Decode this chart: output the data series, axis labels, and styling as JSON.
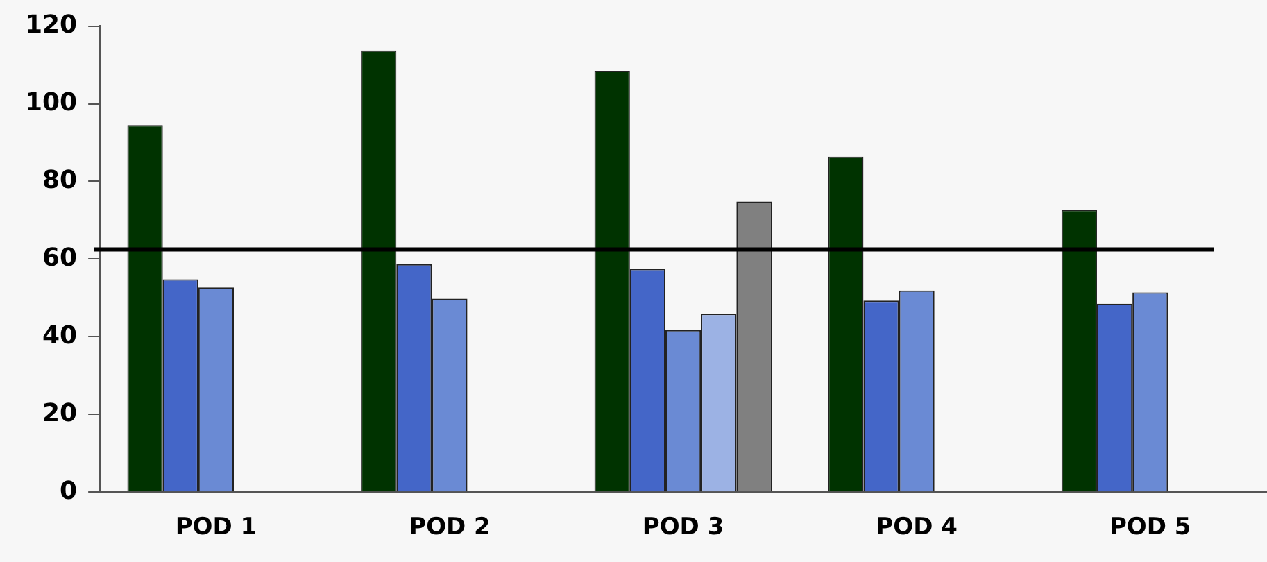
{
  "chart_data": {
    "type": "bar",
    "categories": [
      "POD 1",
      "POD 2",
      "POD 3",
      "POD 4",
      "POD 5"
    ],
    "series": [
      {
        "color": "#003300",
        "values": [
          94.5,
          113.7,
          108.5,
          86.4,
          72.7
        ]
      },
      {
        "color": "#4466c8",
        "values": [
          54.8,
          58.7,
          57.5,
          49.3,
          48.5
        ]
      },
      {
        "color": "#6a8ad4",
        "values": [
          52.7,
          49.8,
          41.7,
          51.9,
          51.4
        ]
      },
      {
        "color": "#9cb2e4",
        "values": [
          null,
          null,
          45.9,
          null,
          null
        ]
      },
      {
        "color": "#808080",
        "values": [
          null,
          null,
          74.8,
          null,
          null
        ]
      }
    ],
    "ylim": [
      0,
      120
    ],
    "yticks": [
      0,
      20,
      40,
      60,
      80,
      100,
      120
    ],
    "ref_lines": [
      {
        "axis": "y",
        "value": 62.5,
        "color": "#000000"
      }
    ],
    "grid": false,
    "legend": false
  }
}
